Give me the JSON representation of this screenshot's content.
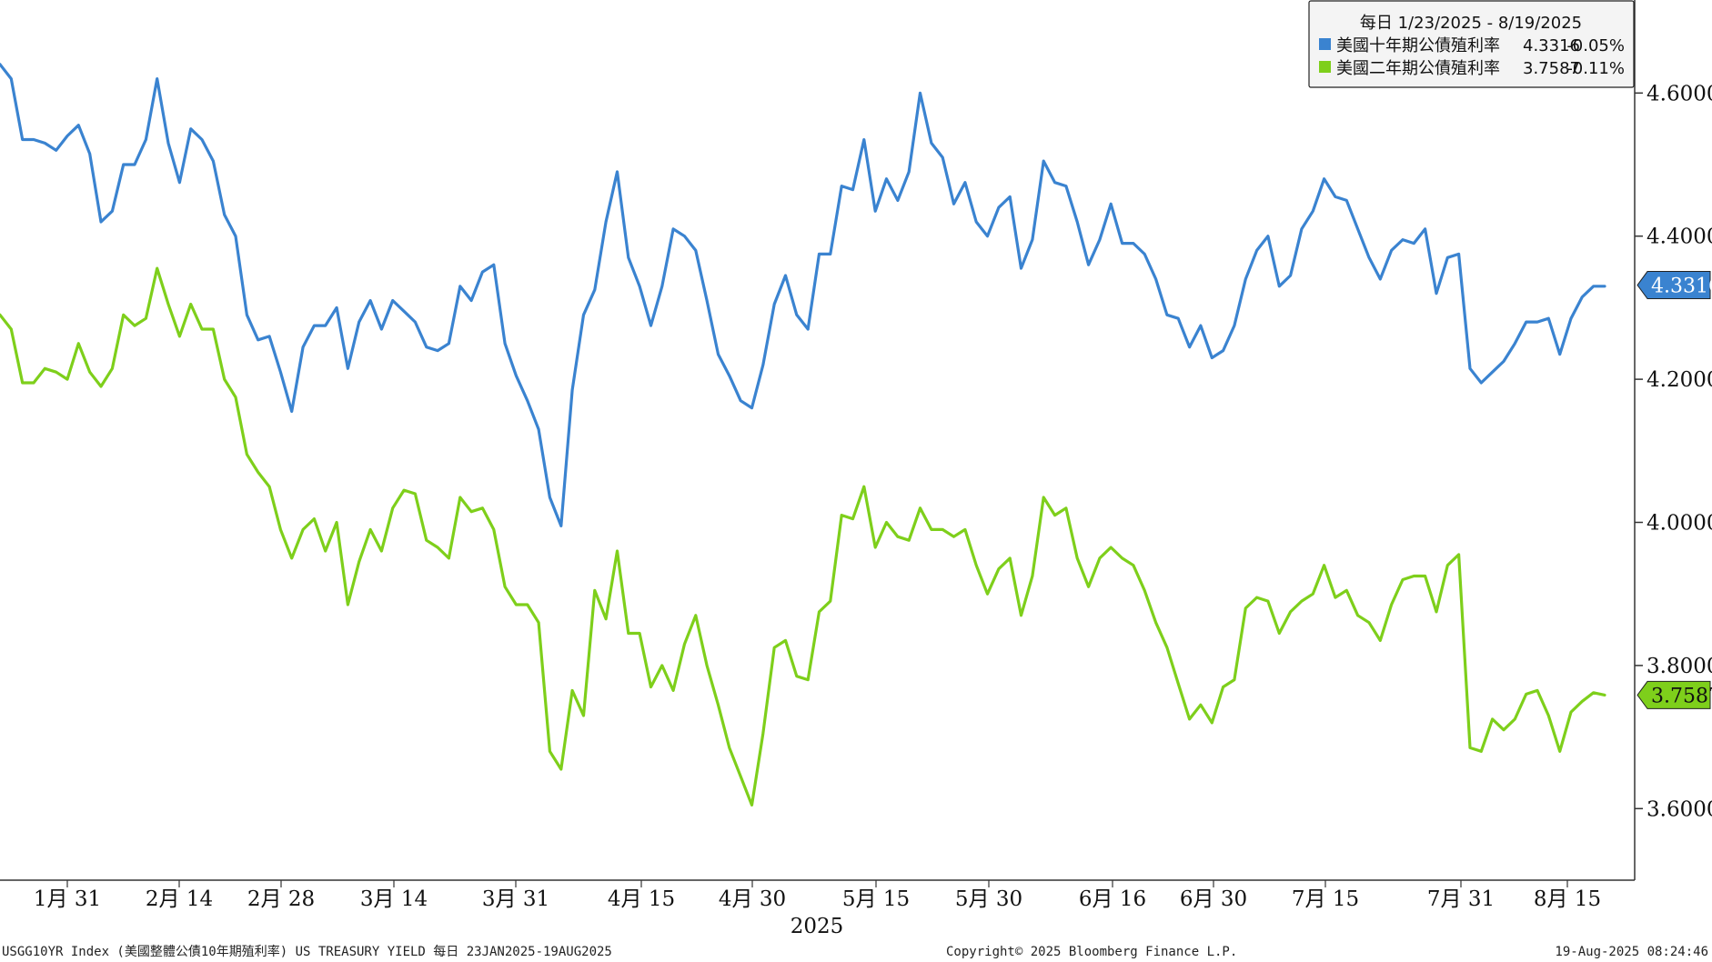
{
  "chart_data": {
    "type": "line",
    "year_label": "2025",
    "x_ticks": [
      "1月 31",
      "2月 14",
      "2月 28",
      "3月 14",
      "3月 31",
      "4月 15",
      "4月 30",
      "5月 15",
      "5月 30",
      "6月 16",
      "6月 30",
      "7月 15",
      "7月 31",
      "8月 15"
    ],
    "y_ticks": [
      "4.6000",
      "4.4000",
      "4.2000",
      "4.0000",
      "3.8000",
      "3.6000"
    ],
    "ylim": [
      3.5,
      4.73
    ],
    "legend": {
      "header": "每日 1/23/2025 - 8/19/2025",
      "placement": "top-right",
      "entries": [
        {
          "label": "美國十年期公債殖利率",
          "last": "4.3316",
          "change": "-0.05%",
          "color": "#3a83d0"
        },
        {
          "label": "美國二年期公債殖利率",
          "last": "3.7587",
          "change": "-0.11%",
          "color": "#7ecf1b"
        }
      ]
    },
    "series": [
      {
        "name": "美國十年期公債殖利率",
        "color": "#3a83d0",
        "last_value": "4.3316",
        "values": [
          4.64,
          4.62,
          4.535,
          4.535,
          4.53,
          4.52,
          4.54,
          4.555,
          4.515,
          4.42,
          4.435,
          4.5,
          4.5,
          4.535,
          4.62,
          4.53,
          4.475,
          4.55,
          4.535,
          4.505,
          4.43,
          4.4,
          4.29,
          4.255,
          4.26,
          4.21,
          4.155,
          4.245,
          4.275,
          4.275,
          4.3,
          4.215,
          4.28,
          4.31,
          4.27,
          4.31,
          4.295,
          4.28,
          4.245,
          4.24,
          4.25,
          4.33,
          4.31,
          4.35,
          4.36,
          4.25,
          4.205,
          4.17,
          4.13,
          4.035,
          3.995,
          4.185,
          4.29,
          4.325,
          4.42,
          4.49,
          4.37,
          4.33,
          4.275,
          4.33,
          4.41,
          4.4,
          4.38,
          4.31,
          4.235,
          4.205,
          4.17,
          4.16,
          4.22,
          4.305,
          4.345,
          4.29,
          4.27,
          4.375,
          4.375,
          4.47,
          4.465,
          4.535,
          4.435,
          4.48,
          4.45,
          4.49,
          4.6,
          4.53,
          4.51,
          4.445,
          4.475,
          4.42,
          4.4,
          4.44,
          4.455,
          4.355,
          4.395,
          4.505,
          4.475,
          4.47,
          4.42,
          4.36,
          4.395,
          4.445,
          4.39,
          4.39,
          4.375,
          4.34,
          4.29,
          4.285,
          4.245,
          4.275,
          4.23,
          4.24,
          4.275,
          4.34,
          4.38,
          4.4,
          4.33,
          4.345,
          4.41,
          4.435,
          4.48,
          4.455,
          4.45,
          4.41,
          4.37,
          4.34,
          4.38,
          4.395,
          4.39,
          4.41,
          4.32,
          4.37,
          4.375,
          4.215,
          4.195,
          4.21,
          4.225,
          4.25,
          4.28,
          4.28,
          4.285,
          4.235,
          4.285,
          4.315,
          4.33,
          4.33
        ]
      },
      {
        "name": "美國二年期公債殖利率",
        "color": "#7ecf1b",
        "last_value": "3.7587",
        "values": [
          4.29,
          4.27,
          4.195,
          4.195,
          4.215,
          4.21,
          4.2,
          4.25,
          4.21,
          4.19,
          4.215,
          4.29,
          4.275,
          4.285,
          4.355,
          4.305,
          4.26,
          4.305,
          4.27,
          4.27,
          4.2,
          4.175,
          4.095,
          4.07,
          4.05,
          3.99,
          3.95,
          3.99,
          4.005,
          3.96,
          4.0,
          3.885,
          3.945,
          3.99,
          3.96,
          4.02,
          4.045,
          4.04,
          3.975,
          3.965,
          3.95,
          4.035,
          4.015,
          4.02,
          3.99,
          3.91,
          3.885,
          3.885,
          3.86,
          3.68,
          3.655,
          3.765,
          3.73,
          3.905,
          3.865,
          3.96,
          3.845,
          3.845,
          3.77,
          3.8,
          3.765,
          3.83,
          3.87,
          3.8,
          3.745,
          3.685,
          3.645,
          3.605,
          3.705,
          3.825,
          3.835,
          3.785,
          3.78,
          3.875,
          3.89,
          4.01,
          4.005,
          4.05,
          3.965,
          4.0,
          3.98,
          3.975,
          4.02,
          3.99,
          3.99,
          3.98,
          3.99,
          3.94,
          3.9,
          3.935,
          3.95,
          3.87,
          3.925,
          4.035,
          4.01,
          4.02,
          3.95,
          3.91,
          3.95,
          3.965,
          3.95,
          3.94,
          3.905,
          3.86,
          3.825,
          3.775,
          3.725,
          3.745,
          3.72,
          3.77,
          3.78,
          3.88,
          3.895,
          3.89,
          3.845,
          3.875,
          3.89,
          3.9,
          3.94,
          3.895,
          3.905,
          3.87,
          3.86,
          3.835,
          3.885,
          3.92,
          3.925,
          3.925,
          3.875,
          3.94,
          3.955,
          3.685,
          3.68,
          3.725,
          3.71,
          3.725,
          3.76,
          3.765,
          3.73,
          3.68,
          3.735,
          3.75,
          3.762,
          3.7587
        ]
      }
    ]
  },
  "footer": {
    "left": "USGG10YR Index (美國整體公債10年期殖利率) US TREASURY YIELD  每日 23JAN2025-19AUG2025",
    "center": "Copyright© 2025 Bloomberg Finance L.P.",
    "right": "19-Aug-2025 08:24:46"
  }
}
